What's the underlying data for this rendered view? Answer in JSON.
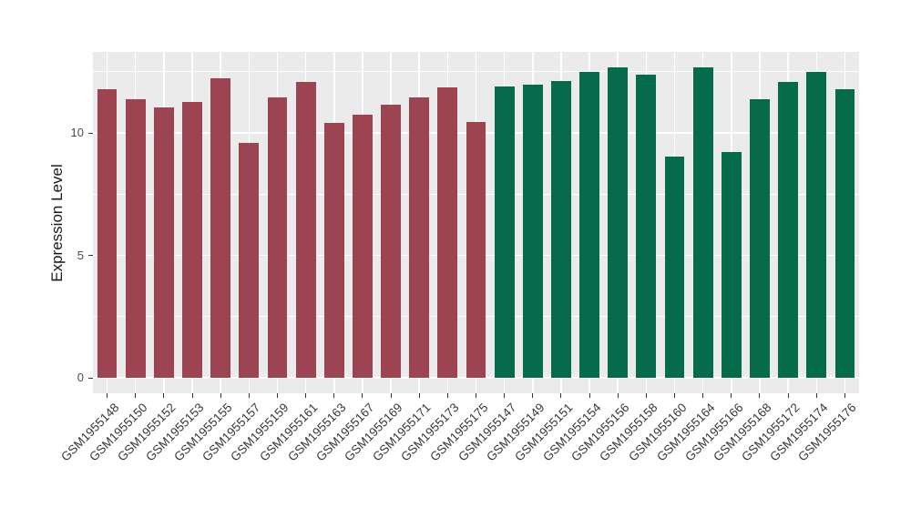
{
  "chart_data": {
    "type": "bar",
    "title": "",
    "xlabel": "",
    "ylabel": "Expression Level",
    "yticks": [
      0,
      5,
      10
    ],
    "yminor": [
      2.5,
      7.5,
      12.5
    ],
    "ylim": [
      -0.63,
      13.31
    ],
    "grid": true,
    "legend": false,
    "panel_background": "#EBEBEB",
    "gridline_color": "#FFFFFF",
    "series": [
      {
        "name": "group-maroon",
        "color": "#9C4452",
        "categories": [
          "GSM1955148",
          "GSM1955150",
          "GSM1955152",
          "GSM1955153",
          "GSM1955155",
          "GSM1955157",
          "GSM1955159",
          "GSM1955161",
          "GSM1955163",
          "GSM1955167",
          "GSM1955169",
          "GSM1955171",
          "GSM1955173",
          "GSM1955175"
        ],
        "values": [
          11.8,
          11.36,
          11.03,
          11.25,
          12.23,
          9.6,
          11.46,
          12.09,
          10.41,
          10.75,
          11.15,
          11.46,
          11.86,
          10.46
        ]
      },
      {
        "name": "group-green",
        "color": "#066B4B",
        "categories": [
          "GSM1955147",
          "GSM1955149",
          "GSM1955151",
          "GSM1955154",
          "GSM1955156",
          "GSM1955158",
          "GSM1955160",
          "GSM1955164",
          "GSM1955166",
          "GSM1955168",
          "GSM1955172",
          "GSM1955174",
          "GSM1955176"
        ],
        "values": [
          11.88,
          11.97,
          12.12,
          12.49,
          12.69,
          12.38,
          9.02,
          12.68,
          9.21,
          11.38,
          12.09,
          12.5,
          11.78
        ]
      }
    ]
  }
}
